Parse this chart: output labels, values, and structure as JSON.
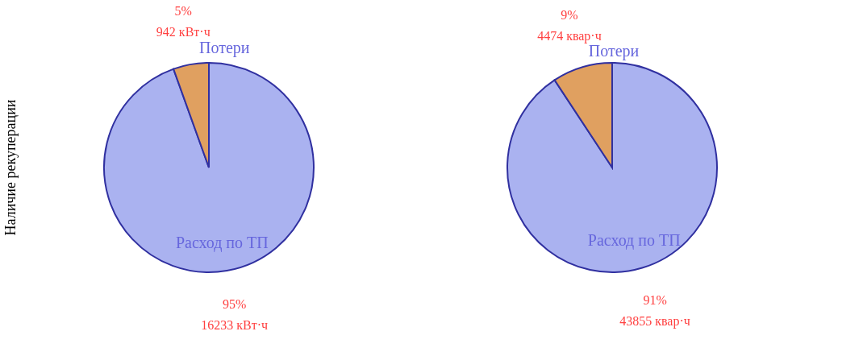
{
  "chart_data": [
    {
      "type": "pie",
      "ylabel": "Наличие рекуперации",
      "categories": [
        "Расход по ТП",
        "Потери"
      ],
      "values": [
        16233,
        942
      ],
      "colors": [
        "#aab2f0",
        "#e0a060"
      ],
      "value_labels": [
        "16233 кВт·ч",
        "942 кВт·ч"
      ],
      "annotations": [
        "95%",
        "5%"
      ]
    },
    {
      "type": "pie",
      "categories": [
        "Расход по ТП",
        "Потери"
      ],
      "values": [
        43855,
        4474
      ],
      "colors": [
        "#aab2f0",
        "#e0a060"
      ],
      "value_labels": [
        "43855 квар·ч",
        "4474 квар·ч"
      ],
      "annotations": [
        "91%",
        "9%"
      ]
    }
  ]
}
